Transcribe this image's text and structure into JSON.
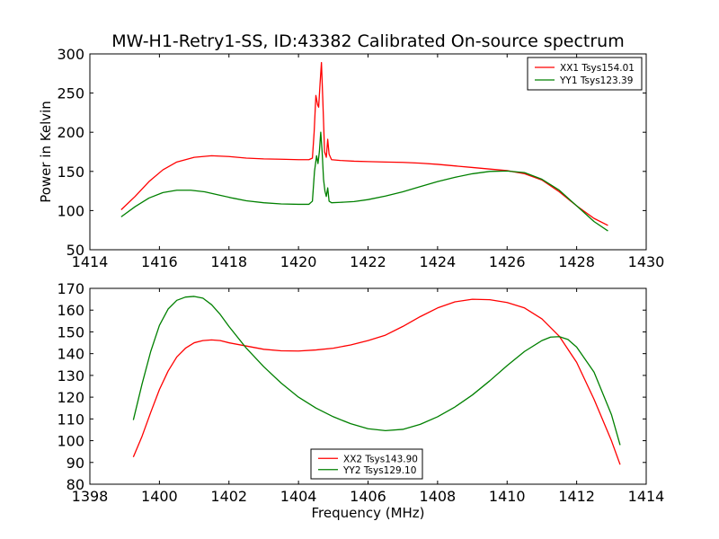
{
  "chart_data": [
    {
      "type": "line",
      "title": "MW-H1-Retry1-SS, ID:43382 Calibrated On-source spectrum",
      "xlabel": "",
      "ylabel": "Power in Kelvin",
      "xlim": [
        1414,
        1430
      ],
      "ylim": [
        50,
        300
      ],
      "xticks": [
        "1414",
        "1416",
        "1418",
        "1420",
        "1422",
        "1424",
        "1426",
        "1428",
        "1430"
      ],
      "yticks": [
        "50",
        "100",
        "150",
        "200",
        "250",
        "300"
      ],
      "legend_position": "top-right",
      "grid": false,
      "series": [
        {
          "name": "XX1 Tsys154.01",
          "color": "#ff0000",
          "points": [
            [
              1414.9,
              101
            ],
            [
              1415.3,
              118
            ],
            [
              1415.7,
              137
            ],
            [
              1416.1,
              152
            ],
            [
              1416.5,
              162
            ],
            [
              1417.0,
              168
            ],
            [
              1417.5,
              170
            ],
            [
              1418.0,
              169
            ],
            [
              1418.5,
              167
            ],
            [
              1419.0,
              166
            ],
            [
              1419.5,
              165.5
            ],
            [
              1420.0,
              165
            ],
            [
              1420.3,
              165
            ],
            [
              1420.4,
              167
            ],
            [
              1420.45,
              200
            ],
            [
              1420.5,
              247
            ],
            [
              1420.55,
              235
            ],
            [
              1420.58,
              232
            ],
            [
              1420.62,
              262
            ],
            [
              1420.66,
              289
            ],
            [
              1420.7,
              240
            ],
            [
              1420.75,
              175
            ],
            [
              1420.8,
              168
            ],
            [
              1420.84,
              191
            ],
            [
              1420.88,
              172
            ],
            [
              1420.95,
              165
            ],
            [
              1421.2,
              164
            ],
            [
              1421.6,
              163
            ],
            [
              1422.0,
              162.5
            ],
            [
              1422.5,
              162
            ],
            [
              1423.0,
              161.5
            ],
            [
              1423.5,
              160.5
            ],
            [
              1424.0,
              159
            ],
            [
              1424.5,
              157
            ],
            [
              1425.0,
              155
            ],
            [
              1425.5,
              153
            ],
            [
              1426.0,
              151
            ],
            [
              1426.5,
              147
            ],
            [
              1427.0,
              139
            ],
            [
              1427.5,
              124
            ],
            [
              1428.0,
              106
            ],
            [
              1428.5,
              90
            ],
            [
              1428.9,
              81
            ]
          ]
        },
        {
          "name": "YY1 Tsys123.39",
          "color": "#008000",
          "points": [
            [
              1414.9,
              92
            ],
            [
              1415.3,
              105
            ],
            [
              1415.7,
              116
            ],
            [
              1416.1,
              123
            ],
            [
              1416.5,
              126
            ],
            [
              1416.9,
              126
            ],
            [
              1417.3,
              124
            ],
            [
              1417.7,
              120
            ],
            [
              1418.1,
              116
            ],
            [
              1418.5,
              112.5
            ],
            [
              1419.0,
              110
            ],
            [
              1419.5,
              108.5
            ],
            [
              1420.0,
              108
            ],
            [
              1420.3,
              108
            ],
            [
              1420.4,
              112
            ],
            [
              1420.46,
              150
            ],
            [
              1420.52,
              170
            ],
            [
              1420.56,
              160
            ],
            [
              1420.6,
              175
            ],
            [
              1420.64,
              200
            ],
            [
              1420.68,
              175
            ],
            [
              1420.72,
              140
            ],
            [
              1420.76,
              125
            ],
            [
              1420.8,
              118
            ],
            [
              1420.84,
              129
            ],
            [
              1420.88,
              112
            ],
            [
              1420.95,
              110
            ],
            [
              1421.2,
              110.5
            ],
            [
              1421.6,
              111.5
            ],
            [
              1422.0,
              114
            ],
            [
              1422.5,
              118.5
            ],
            [
              1423.0,
              124
            ],
            [
              1423.5,
              130.5
            ],
            [
              1424.0,
              137
            ],
            [
              1424.5,
              142.5
            ],
            [
              1425.0,
              147
            ],
            [
              1425.5,
              150
            ],
            [
              1426.0,
              150.5
            ],
            [
              1426.5,
              148.5
            ],
            [
              1427.0,
              140
            ],
            [
              1427.5,
              126
            ],
            [
              1428.0,
              106
            ],
            [
              1428.5,
              86
            ],
            [
              1428.9,
              74
            ]
          ]
        }
      ]
    },
    {
      "type": "line",
      "title": "",
      "xlabel": "Frequency (MHz)",
      "ylabel": "",
      "xlim": [
        1398,
        1414
      ],
      "ylim": [
        80,
        170
      ],
      "xticks": [
        "1398",
        "1400",
        "1402",
        "1404",
        "1406",
        "1408",
        "1410",
        "1412",
        "1414"
      ],
      "yticks": [
        "80",
        "90",
        "100",
        "110",
        "120",
        "130",
        "140",
        "150",
        "160",
        "170"
      ],
      "legend_position": "bottom-center",
      "grid": false,
      "series": [
        {
          "name": "XX2 Tsys143.90",
          "color": "#ff0000",
          "points": [
            [
              1399.25,
              92.5
            ],
            [
              1399.5,
              102
            ],
            [
              1399.75,
              113
            ],
            [
              1400.0,
              123.5
            ],
            [
              1400.25,
              132
            ],
            [
              1400.5,
              138.5
            ],
            [
              1400.75,
              142.5
            ],
            [
              1401.0,
              145
            ],
            [
              1401.25,
              146
            ],
            [
              1401.5,
              146.3
            ],
            [
              1401.75,
              146
            ],
            [
              1402.0,
              145
            ],
            [
              1402.5,
              143.5
            ],
            [
              1403.0,
              142
            ],
            [
              1403.5,
              141.3
            ],
            [
              1404.0,
              141.2
            ],
            [
              1404.5,
              141.7
            ],
            [
              1405.0,
              142.5
            ],
            [
              1405.5,
              144
            ],
            [
              1406.0,
              146
            ],
            [
              1406.5,
              148.5
            ],
            [
              1407.0,
              152.5
            ],
            [
              1407.5,
              157
            ],
            [
              1408.0,
              161
            ],
            [
              1408.5,
              163.8
            ],
            [
              1409.0,
              165
            ],
            [
              1409.5,
              164.8
            ],
            [
              1410.0,
              163.5
            ],
            [
              1410.5,
              161
            ],
            [
              1411.0,
              156
            ],
            [
              1411.5,
              148
            ],
            [
              1412.0,
              136
            ],
            [
              1412.5,
              119
            ],
            [
              1413.0,
              100
            ],
            [
              1413.25,
              89
            ]
          ]
        },
        {
          "name": "YY2 Tsys129.10",
          "color": "#008000",
          "points": [
            [
              1399.25,
              109.5
            ],
            [
              1399.5,
              126
            ],
            [
              1399.75,
              141
            ],
            [
              1400.0,
              153
            ],
            [
              1400.25,
              160.5
            ],
            [
              1400.5,
              164.5
            ],
            [
              1400.75,
              166
            ],
            [
              1401.0,
              166.3
            ],
            [
              1401.25,
              165.5
            ],
            [
              1401.5,
              162.5
            ],
            [
              1401.75,
              158
            ],
            [
              1402.0,
              152.5
            ],
            [
              1402.5,
              142.5
            ],
            [
              1403.0,
              134
            ],
            [
              1403.5,
              126.5
            ],
            [
              1404.0,
              120
            ],
            [
              1404.5,
              115
            ],
            [
              1405.0,
              111
            ],
            [
              1405.5,
              107.8
            ],
            [
              1406.0,
              105.5
            ],
            [
              1406.5,
              104.6
            ],
            [
              1407.0,
              105.2
            ],
            [
              1407.5,
              107.5
            ],
            [
              1408.0,
              111
            ],
            [
              1408.5,
              115.5
            ],
            [
              1409.0,
              121
            ],
            [
              1409.5,
              127.5
            ],
            [
              1410.0,
              134.5
            ],
            [
              1410.5,
              141
            ],
            [
              1411.0,
              146
            ],
            [
              1411.25,
              147.6
            ],
            [
              1411.5,
              147.8
            ],
            [
              1411.75,
              146.5
            ],
            [
              1412.0,
              143
            ],
            [
              1412.5,
              131.5
            ],
            [
              1413.0,
              112
            ],
            [
              1413.25,
              98
            ]
          ]
        }
      ]
    }
  ]
}
